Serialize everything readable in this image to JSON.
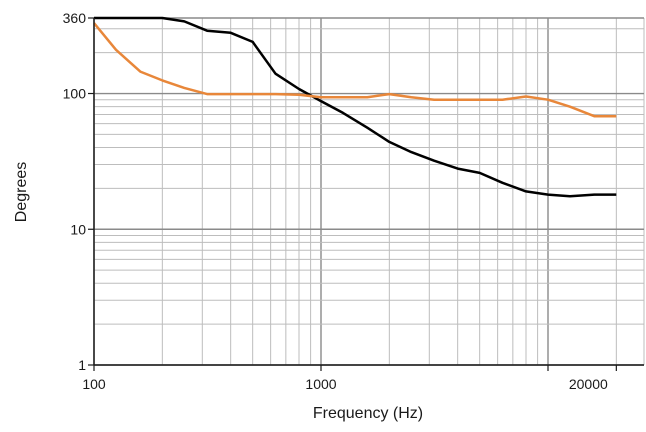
{
  "chart_data": {
    "type": "line",
    "xlabel": "Frequency (Hz)",
    "ylabel": "Degrees",
    "x_scale": "log",
    "y_scale": "log",
    "xlim": [
      100,
      20000
    ],
    "ylim": [
      1,
      360
    ],
    "x_ticks": [
      {
        "value": 100,
        "label": "100"
      },
      {
        "value": 1000,
        "label": "1000"
      },
      {
        "value": 20000,
        "label": "20000"
      }
    ],
    "y_ticks": [
      {
        "value": 1,
        "label": "1"
      },
      {
        "value": 10,
        "label": "10"
      },
      {
        "value": 100,
        "label": "100"
      },
      {
        "value": 360,
        "label": "360"
      }
    ],
    "grid": true,
    "series": [
      {
        "color": "#000000",
        "x": [
          100,
          125,
          160,
          200,
          250,
          315,
          400,
          500,
          630,
          800,
          1000,
          1250,
          1600,
          2000,
          2500,
          3150,
          4000,
          5000,
          6300,
          8000,
          10000,
          12500,
          16000,
          20000
        ],
        "y": [
          360,
          360,
          360,
          360,
          340,
          290,
          280,
          240,
          140,
          108,
          88,
          72,
          56,
          44,
          37,
          32,
          28,
          26,
          22,
          19,
          18,
          17.5,
          18,
          18
        ]
      },
      {
        "color": "#e8873a",
        "x": [
          100,
          125,
          160,
          200,
          250,
          315,
          400,
          500,
          630,
          800,
          1000,
          1250,
          1600,
          2000,
          2500,
          3150,
          4000,
          5000,
          6300,
          8000,
          10000,
          12500,
          16000,
          20000
        ],
        "y": [
          330,
          210,
          145,
          125,
          110,
          99,
          99,
          99,
          99,
          98,
          94,
          94,
          94,
          99,
          94,
          90,
          90,
          90,
          90,
          95,
          90,
          80,
          68,
          68
        ]
      }
    ]
  }
}
